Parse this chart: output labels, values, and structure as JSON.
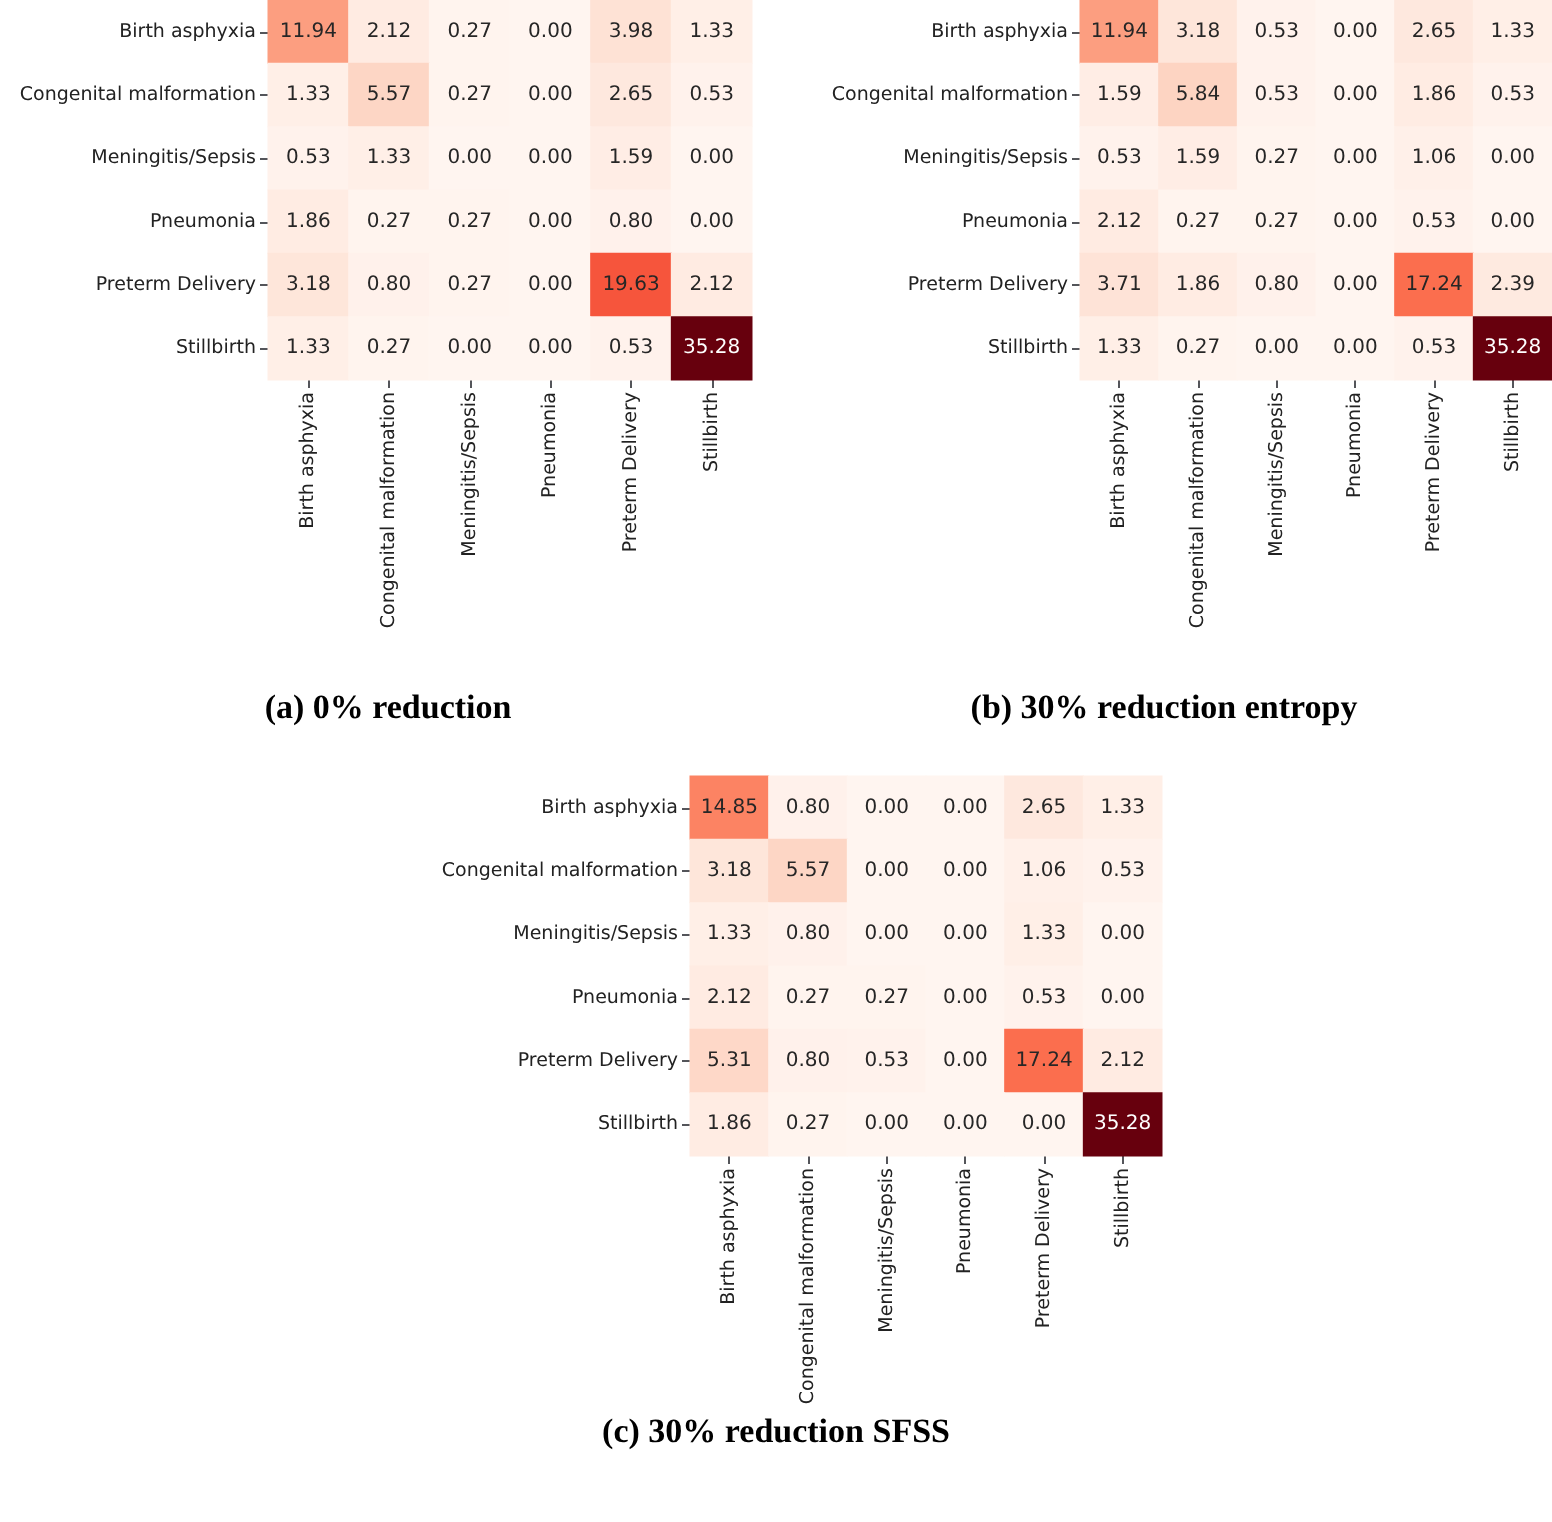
{
  "chart_data": [
    {
      "type": "heatmap",
      "title": "(a) 0% reduction",
      "categories": [
        "Birth asphyxia",
        "Congenital malformation",
        "Meningitis/Sepsis",
        "Pneumonia",
        "Preterm Delivery",
        "Stillbirth"
      ],
      "y_categories": [
        "Birth asphyxia",
        "Congenital malformation",
        "Meningitis/Sepsis",
        "Pneumonia",
        "Preterm Delivery",
        "Stillbirth"
      ],
      "cells": [
        [
          11.94,
          2.12,
          0.27,
          0,
          3.98,
          1.33
        ],
        [
          1.33,
          5.57,
          0.27,
          0,
          2.65,
          0.53
        ],
        [
          0.53,
          1.33,
          0,
          0,
          1.59,
          0
        ],
        [
          1.86,
          0.27,
          0.27,
          0,
          0.8,
          0
        ],
        [
          3.18,
          0.8,
          0.27,
          0,
          19.63,
          2.12
        ],
        [
          1.33,
          0.27,
          0,
          0,
          0.53,
          35.28
        ]
      ],
      "cell_labels": [
        [
          "11.94",
          "2.12",
          "0.27",
          "0.00",
          "3.98",
          "1.33"
        ],
        [
          "1.33",
          "5.57",
          "0.27",
          "0.00",
          "2.65",
          "0.53"
        ],
        [
          "0.53",
          "1.33",
          "0.00",
          "0.00",
          "1.59",
          "0.00"
        ],
        [
          "1.86",
          "0.27",
          "0.27",
          "0.00",
          "0.80",
          "0.00"
        ],
        [
          "3.18",
          "0.80",
          "0.27",
          "0.00",
          "19.63",
          "2.12"
        ],
        [
          "1.33",
          "0.27",
          "0.00",
          "0.00",
          "0.53",
          "35.28"
        ]
      ]
    },
    {
      "type": "heatmap",
      "title": "(b) 30% reduction entropy",
      "categories": [
        "Birth asphyxia",
        "Congenital malformation",
        "Meningitis/Sepsis",
        "Pneumonia",
        "Preterm Delivery",
        "Stillbirth"
      ],
      "y_categories": [
        "Birth asphyxia",
        "Congenital malformation",
        "Meningitis/Sepsis",
        "Pneumonia",
        "Preterm Delivery",
        "Stillbirth"
      ],
      "cells": [
        [
          11.94,
          3.18,
          0.53,
          0,
          2.65,
          1.33
        ],
        [
          1.59,
          5.84,
          0.53,
          0,
          1.86,
          0.53
        ],
        [
          0.53,
          1.59,
          0.27,
          0,
          1.06,
          0
        ],
        [
          2.12,
          0.27,
          0.27,
          0,
          0.53,
          0
        ],
        [
          3.71,
          1.86,
          0.8,
          0,
          17.24,
          2.39
        ],
        [
          1.33,
          0.27,
          0,
          0,
          0.53,
          35.28
        ]
      ],
      "cell_labels": [
        [
          "11.94",
          "3.18",
          "0.53",
          "0.00",
          "2.65",
          "1.33"
        ],
        [
          "1.59",
          "5.84",
          "0.53",
          "0.00",
          "1.86",
          "0.53"
        ],
        [
          "0.53",
          "1.59",
          "0.27",
          "0.00",
          "1.06",
          "0.00"
        ],
        [
          "2.12",
          "0.27",
          "0.27",
          "0.00",
          "0.53",
          "0.00"
        ],
        [
          "3.71",
          "1.86",
          "0.80",
          "0.00",
          "17.24",
          "2.39"
        ],
        [
          "1.33",
          "0.27",
          "0.00",
          "0.00",
          "0.53",
          "35.28"
        ]
      ]
    },
    {
      "type": "heatmap",
      "title": "(c) 30% reduction SFSS",
      "categories": [
        "Birth asphyxia",
        "Congenital malformation",
        "Meningitis/Sepsis",
        "Pneumonia",
        "Preterm Delivery",
        "Stillbirth"
      ],
      "y_categories": [
        "Birth asphyxia",
        "Congenital malformation",
        "Meningitis/Sepsis",
        "Pneumonia",
        "Preterm Delivery",
        "Stillbirth"
      ],
      "cells": [
        [
          14.85,
          0.8,
          0,
          0,
          2.65,
          1.33
        ],
        [
          3.18,
          5.57,
          0,
          0,
          1.06,
          0.53
        ],
        [
          1.33,
          0.8,
          0,
          0,
          1.33,
          0
        ],
        [
          2.12,
          0.27,
          0.27,
          0,
          0.53,
          0
        ],
        [
          5.31,
          0.8,
          0.53,
          0,
          17.24,
          2.12
        ],
        [
          1.86,
          0.27,
          0,
          0,
          0,
          35.28
        ]
      ],
      "cell_labels": [
        [
          "14.85",
          "0.80",
          "0.00",
          "0.00",
          "2.65",
          "1.33"
        ],
        [
          "3.18",
          "5.57",
          "0.00",
          "0.00",
          "1.06",
          "0.53"
        ],
        [
          "1.33",
          "0.80",
          "0.00",
          "0.00",
          "1.33",
          "0.00"
        ],
        [
          "2.12",
          "0.27",
          "0.27",
          "0.00",
          "0.53",
          "0.00"
        ],
        [
          "5.31",
          "0.80",
          "0.53",
          "0.00",
          "17.24",
          "2.12"
        ],
        [
          "1.86",
          "0.27",
          "0.00",
          "0.00",
          "0.00",
          "35.28"
        ]
      ]
    }
  ]
}
